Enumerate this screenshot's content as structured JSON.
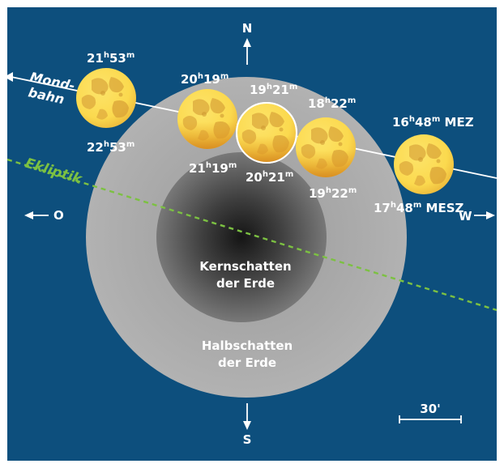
{
  "directions": {
    "north": "N",
    "south": "S",
    "east": "O",
    "west": "W"
  },
  "paths": {
    "moon_path": "Mond-bahn",
    "moon_path_line1": "Mond-",
    "moon_path_line2": "bahn",
    "ecliptic": "Ekliptik"
  },
  "shadows": {
    "umbra_line1": "Kernschatten",
    "umbra_line2": "der Erde",
    "penumbra_line1": "Halbschatten",
    "penumbra_line2": "der Erde"
  },
  "scale_bar": "30'",
  "times": [
    {
      "label": "16h48m MEZ",
      "h": "16",
      "m": "48",
      "suffix": "MEZ"
    },
    {
      "label": "17h48m MESZ",
      "h": "17",
      "m": "48",
      "suffix": "MESZ"
    },
    {
      "label": "18h22m",
      "h": "18",
      "m": "22",
      "suffix": ""
    },
    {
      "label": "19h22m",
      "h": "19",
      "m": "22",
      "suffix": ""
    },
    {
      "label": "19h21m",
      "h": "19",
      "m": "21",
      "suffix": ""
    },
    {
      "label": "20h21m",
      "h": "20",
      "m": "21",
      "suffix": ""
    },
    {
      "label": "20h19m",
      "h": "20",
      "m": "19",
      "suffix": ""
    },
    {
      "label": "21h19m",
      "h": "21",
      "m": "19",
      "suffix": ""
    },
    {
      "label": "21h53m",
      "h": "21",
      "m": "53",
      "suffix": ""
    },
    {
      "label": "22h53m",
      "h": "22",
      "m": "53",
      "suffix": ""
    }
  ],
  "colors": {
    "background": "#0d4f7d",
    "moon_light": "#fbd94e",
    "moon_dark": "#e0a329",
    "ecliptic": "#7cc142",
    "penumbra": "#a4a4a4"
  }
}
